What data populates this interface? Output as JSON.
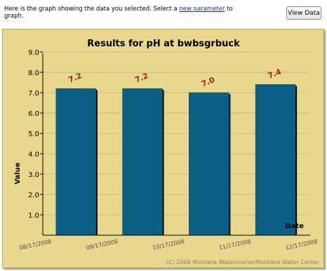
{
  "intro": {
    "before": "Here is the graph showing the data you selected. Select a ",
    "link": "new parameter",
    "after": " to graph."
  },
  "view_button": "View Data",
  "copyright": "(C) 2009 Montana Watercourse/Montana Water Center",
  "colors": {
    "frame": "#e8d88e",
    "bar": "#0a5f86",
    "bar_shadow": "#000000",
    "value_label": "#a5231b",
    "grid": "#c8b972"
  },
  "chart_data": {
    "type": "bar",
    "title": "Results for pH at bwbsgrbuck",
    "xlabel": "Date",
    "ylabel": "Value",
    "ylim": [
      0,
      9
    ],
    "yticks": [
      "1.0",
      "2.0",
      "3.0",
      "4.0",
      "5.0",
      "6.0",
      "7.0",
      "8.0",
      "9.0"
    ],
    "x_tick_labels": [
      "08/17/2008",
      "09/17/2008",
      "10/17/2008",
      "11/17/2008",
      "12/17/2008"
    ],
    "categories": [
      "08/17/2008",
      "09/17/2008",
      "10/17/2008",
      "11/17/2008"
    ],
    "values": [
      7.2,
      7.2,
      7.0,
      7.4
    ],
    "value_labels": [
      "7.2",
      "7.2",
      "7.0",
      "7.4"
    ],
    "grid": true,
    "legend": "none"
  }
}
